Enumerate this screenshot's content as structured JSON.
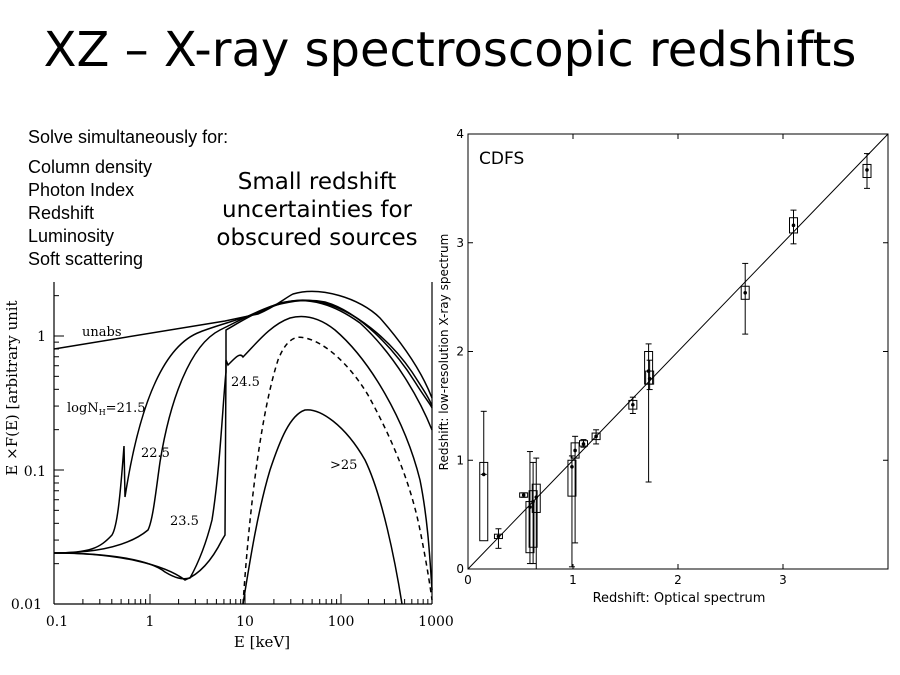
{
  "slide": {
    "title": "XZ – X-ray spectroscopic redshifts",
    "solve_heading": "Solve simultaneously for:",
    "parameters": [
      "Column density",
      "Photon Index",
      "Redshift",
      "Luminosity",
      "Soft scattering"
    ],
    "callout_lines": [
      "Small redshift",
      "uncertainties for",
      "obscured sources"
    ]
  },
  "left_plot": {
    "xlabel": "E  [keV]",
    "ylabel": "E ×F(E)  [arbitrary  unit",
    "x_ticks": [
      "0.1",
      "1",
      "10",
      "100",
      "1000"
    ],
    "y_ticks": [
      "0.01",
      "0.1",
      "1"
    ],
    "curve_labels": {
      "unabs": "unabs",
      "n215_prefix": "logN",
      "n215_sub": "H",
      "n215_suffix": "=21.5",
      "n225": "22.5",
      "n235": "23.5",
      "n245": "24.5",
      "n25": ">25"
    }
  },
  "chart_data": {
    "type": "scatter",
    "title": "CDFS",
    "xlabel": "Redshift: Optical spectrum",
    "ylabel": "Redshift: low-resolution X-ray spectrum",
    "xlim": [
      0,
      4
    ],
    "ylim": [
      0,
      4
    ],
    "x_ticks": [
      "0",
      "1",
      "2",
      "3"
    ],
    "y_ticks": [
      "0",
      "1",
      "2",
      "3",
      "4"
    ],
    "reference_line": "y = x",
    "points": [
      {
        "x": 0.15,
        "y": 0.87,
        "err_low": 0.87,
        "err_high": 1.45,
        "box_low": 0.26,
        "box_high": 0.98
      },
      {
        "x": 0.29,
        "y": 0.3,
        "err_low": 0.19,
        "err_high": 0.37,
        "box_low": 0.28,
        "box_high": 0.32
      },
      {
        "x": 0.53,
        "y": 0.68,
        "err_low": 0.66,
        "err_high": 0.7,
        "box_low": 0.66,
        "box_high": 0.7
      },
      {
        "x": 0.59,
        "y": 0.57,
        "err_low": 0.05,
        "err_high": 1.08,
        "box_low": 0.15,
        "box_high": 0.62
      },
      {
        "x": 0.62,
        "y": 0.62,
        "err_low": 0.05,
        "err_high": 0.98,
        "box_low": 0.2,
        "box_high": 0.72
      },
      {
        "x": 0.65,
        "y": 0.66,
        "err_low": 0.0,
        "err_high": 1.02,
        "box_low": 0.52,
        "box_high": 0.78
      },
      {
        "x": 0.99,
        "y": 0.94,
        "err_low": 0.02,
        "err_high": 1.04,
        "box_low": 0.67,
        "box_high": 1.0
      },
      {
        "x": 1.02,
        "y": 1.09,
        "err_low": 0.24,
        "err_high": 1.22,
        "box_low": 1.02,
        "box_high": 1.16
      },
      {
        "x": 1.1,
        "y": 1.15,
        "err_low": 1.12,
        "err_high": 1.19,
        "box_low": 1.13,
        "box_high": 1.18
      },
      {
        "x": 1.22,
        "y": 1.22,
        "err_low": 1.15,
        "err_high": 1.28,
        "box_low": 1.19,
        "box_high": 1.25
      },
      {
        "x": 1.57,
        "y": 1.51,
        "err_low": 1.43,
        "err_high": 1.58,
        "box_low": 1.47,
        "box_high": 1.55
      },
      {
        "x": 1.72,
        "y": 1.82,
        "err_low": 0.8,
        "err_high": 2.07,
        "box_low": 1.7,
        "box_high": 2.0
      },
      {
        "x": 1.73,
        "y": 1.75,
        "err_low": 1.65,
        "err_high": 1.92,
        "box_low": 1.7,
        "box_high": 1.82
      },
      {
        "x": 2.64,
        "y": 2.54,
        "err_low": 2.16,
        "err_high": 2.81,
        "box_low": 2.48,
        "box_high": 2.6
      },
      {
        "x": 3.1,
        "y": 3.16,
        "err_low": 2.99,
        "err_high": 3.3,
        "box_low": 3.09,
        "box_high": 3.23
      },
      {
        "x": 3.8,
        "y": 3.67,
        "err_low": 3.5,
        "err_high": 3.82,
        "box_low": 3.6,
        "box_high": 3.72
      }
    ]
  }
}
